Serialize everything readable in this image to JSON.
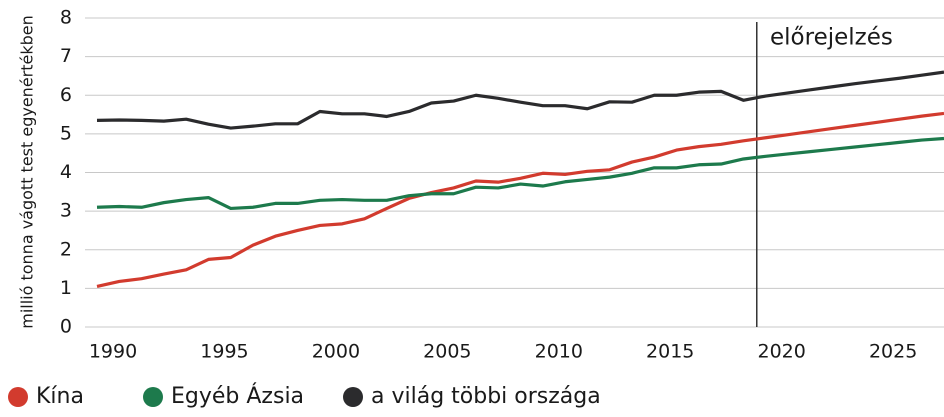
{
  "chart_data": {
    "type": "line",
    "y_label": "millió tonna vágott test egyenértékben",
    "annotation": "előrejelzés",
    "forecast_start": 2019.6,
    "x": [
      1990,
      1991,
      1992,
      1993,
      1994,
      1995,
      1996,
      1997,
      1998,
      1999,
      2000,
      2001,
      2002,
      2003,
      2004,
      2005,
      2006,
      2007,
      2008,
      2009,
      2010,
      2011,
      2012,
      2013,
      2014,
      2015,
      2016,
      2017,
      2018,
      2019,
      2020,
      2021,
      2022,
      2023,
      2024,
      2025,
      2026,
      2027,
      2028
    ],
    "xlim": [
      1990,
      2028
    ],
    "xticks": [
      1990,
      1995,
      2000,
      2005,
      2010,
      2015,
      2020,
      2025
    ],
    "ylim": [
      0,
      8
    ],
    "yticks": [
      0,
      1,
      2,
      3,
      4,
      5,
      6,
      7,
      8
    ],
    "grid": true,
    "series": [
      {
        "name": "Kína",
        "color": "#d23b2e",
        "values": [
          1.05,
          1.18,
          1.25,
          1.37,
          1.48,
          1.75,
          1.8,
          2.12,
          2.35,
          2.5,
          2.63,
          2.67,
          2.8,
          3.07,
          3.33,
          3.48,
          3.6,
          3.78,
          3.75,
          3.85,
          3.98,
          3.95,
          4.03,
          4.07,
          4.27,
          4.4,
          4.58,
          4.67,
          4.73,
          4.82,
          4.9,
          4.98,
          5.06,
          5.14,
          5.22,
          5.3,
          5.38,
          5.46,
          5.53
        ]
      },
      {
        "name": "Egyéb Ázsia",
        "color": "#1d7a4c",
        "values": [
          3.1,
          3.12,
          3.1,
          3.22,
          3.3,
          3.35,
          3.07,
          3.1,
          3.2,
          3.2,
          3.28,
          3.3,
          3.28,
          3.28,
          3.4,
          3.45,
          3.45,
          3.62,
          3.6,
          3.7,
          3.65,
          3.76,
          3.82,
          3.88,
          3.98,
          4.12,
          4.12,
          4.2,
          4.22,
          4.35,
          4.42,
          4.48,
          4.54,
          4.6,
          4.66,
          4.72,
          4.78,
          4.84,
          4.88
        ]
      },
      {
        "name": "a világ többi országa",
        "color": "#2b2b2d",
        "values": [
          5.35,
          5.36,
          5.35,
          5.33,
          5.38,
          5.25,
          5.15,
          5.2,
          5.26,
          5.26,
          5.58,
          5.52,
          5.52,
          5.45,
          5.58,
          5.8,
          5.85,
          6.0,
          5.92,
          5.82,
          5.73,
          5.73,
          5.65,
          5.83,
          5.82,
          6.0,
          6.0,
          6.08,
          6.1,
          5.87,
          5.98,
          6.06,
          6.14,
          6.22,
          6.3,
          6.37,
          6.44,
          6.52,
          6.6
        ]
      }
    ]
  }
}
